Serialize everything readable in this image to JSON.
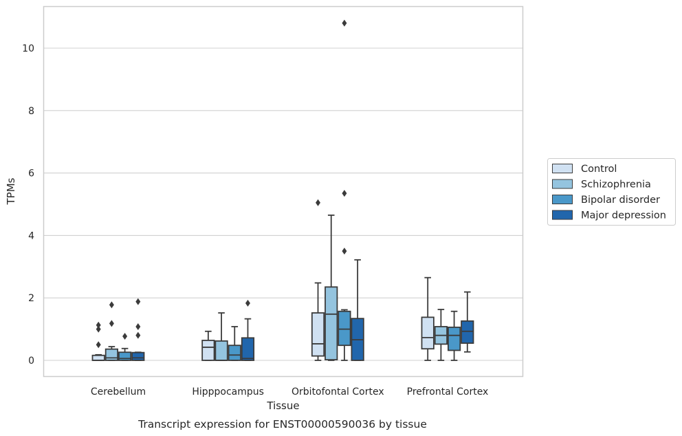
{
  "chart_data": {
    "type": "box",
    "title": "",
    "caption": "Transcript expression for ENST00000590036 by tissue",
    "xlabel": "Tissue",
    "ylabel": "TPMs",
    "categories": [
      "Cerebellum",
      "Hipppocampus",
      "Orbitofontal Cortex",
      "Prefrontal Cortex"
    ],
    "ylim": [
      -0.5,
      11.35
    ],
    "yticks": [
      0,
      2,
      4,
      6,
      8,
      10
    ],
    "grid": "horizontal",
    "legend_position": "right",
    "series": [
      {
        "name": "Control",
        "color": "#d0e1f2",
        "boxes": [
          {
            "min": 0,
            "q1": 0,
            "median": 0,
            "q3": 0.16,
            "max": 0.18,
            "outliers": [
              0.5,
              1.0,
              1.13
            ]
          },
          {
            "min": 0,
            "q1": 0,
            "median": 0.42,
            "q3": 0.64,
            "max": 0.93,
            "outliers": []
          },
          {
            "min": 0,
            "q1": 0.14,
            "median": 0.53,
            "q3": 1.52,
            "max": 2.48,
            "outliers": [
              5.05
            ]
          },
          {
            "min": 0,
            "q1": 0.37,
            "median": 0.73,
            "q3": 1.38,
            "max": 2.65,
            "outliers": []
          }
        ]
      },
      {
        "name": "Schizophrenia",
        "color": "#94c4df",
        "boxes": [
          {
            "min": 0,
            "q1": 0,
            "median": 0.08,
            "q3": 0.36,
            "max": 0.44,
            "outliers": [
              1.18,
              1.78
            ]
          },
          {
            "min": 0,
            "q1": 0,
            "median": 0,
            "q3": 0.62,
            "max": 1.52,
            "outliers": []
          },
          {
            "min": 0,
            "q1": 0.02,
            "median": 1.48,
            "q3": 2.35,
            "max": 4.65,
            "outliers": []
          },
          {
            "min": 0,
            "q1": 0.52,
            "median": 0.8,
            "q3": 1.08,
            "max": 1.63,
            "outliers": []
          }
        ]
      },
      {
        "name": "Bipolar disorder",
        "color": "#4a98c9",
        "boxes": [
          {
            "min": 0,
            "q1": 0,
            "median": 0.06,
            "q3": 0.26,
            "max": 0.38,
            "outliers": [
              0.77
            ]
          },
          {
            "min": 0,
            "q1": 0,
            "median": 0.17,
            "q3": 0.48,
            "max": 1.08,
            "outliers": []
          },
          {
            "min": 0,
            "q1": 0.48,
            "median": 1.0,
            "q3": 1.57,
            "max": 1.62,
            "outliers": [
              3.5,
              5.35,
              10.8
            ]
          },
          {
            "min": 0,
            "q1": 0.32,
            "median": 0.8,
            "q3": 1.06,
            "max": 1.57,
            "outliers": []
          }
        ]
      },
      {
        "name": "Major depression",
        "color": "#2166ac",
        "boxes": [
          {
            "min": 0,
            "q1": 0,
            "median": 0.08,
            "q3": 0.25,
            "max": 0.26,
            "outliers": [
              0.8,
              1.08,
              1.88
            ]
          },
          {
            "min": 0,
            "q1": 0,
            "median": 0.06,
            "q3": 0.72,
            "max": 1.33,
            "outliers": [
              1.83
            ]
          },
          {
            "min": 0,
            "q1": 0,
            "median": 0.66,
            "q3": 1.34,
            "max": 3.22,
            "outliers": []
          },
          {
            "min": 0.27,
            "q1": 0.55,
            "median": 0.93,
            "q3": 1.26,
            "max": 2.19,
            "outliers": []
          }
        ]
      }
    ]
  }
}
